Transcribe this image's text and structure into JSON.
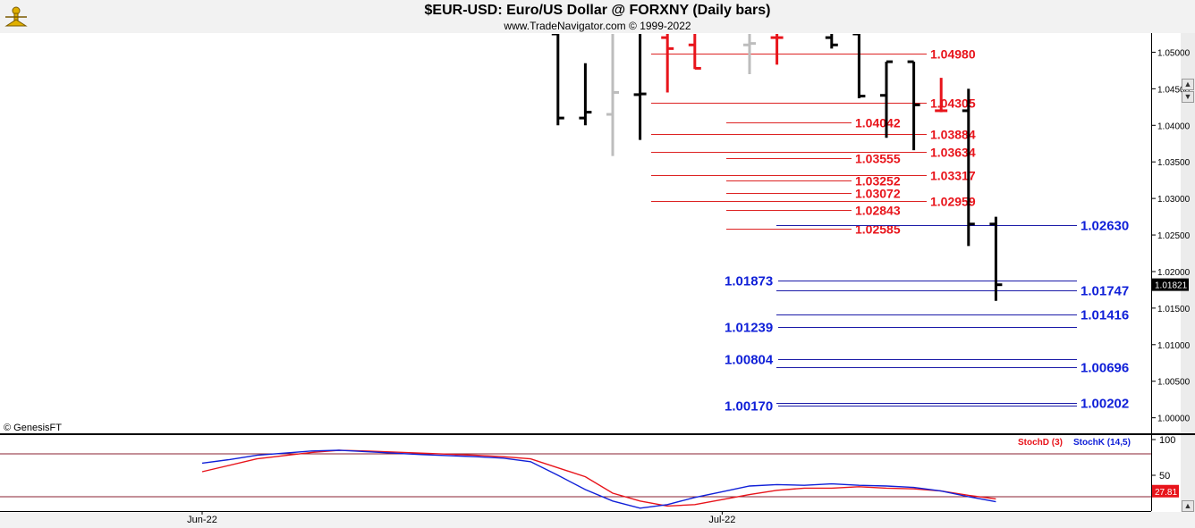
{
  "header": {
    "title": "$EUR-USD:  Euro/US Dollar @ FORXNY  (Daily bars)",
    "subtitle": "www.TradeNavigator.com © 1999-2022",
    "copyright": "© GenesisFT"
  },
  "colors": {
    "red": "#e8141b",
    "blue": "#1020d8",
    "black": "#000000",
    "gray": "#bdbdbd",
    "redline": "#dd2222",
    "blueline": "#1a1aa8"
  },
  "chart_data": [
    {
      "type": "ohlc",
      "title": "$EUR-USD:  Euro/US Dollar @ FORXNY  (Daily bars)",
      "ylim": [
        0.998,
        1.0525
      ],
      "y_ticks": [
        "1.05000",
        "1.04500",
        "1.04000",
        "1.03500",
        "1.03000",
        "1.02500",
        "1.02000",
        "1.01500",
        "1.01000",
        "1.00500",
        "1.00000"
      ],
      "last_price": "1.01821",
      "x_labels": [
        {
          "label": "Jun-22",
          "index": 0
        },
        {
          "label": "Jul-22",
          "index": 19
        }
      ],
      "bars": [
        {
          "i": 13,
          "o": 1.0525,
          "h": 1.0525,
          "l": 1.04,
          "c": 1.041,
          "col": "black"
        },
        {
          "i": 14,
          "o": 1.041,
          "h": 1.0485,
          "l": 1.04,
          "c": 1.0418,
          "col": "black"
        },
        {
          "i": 15,
          "o": 1.0415,
          "h": 1.0525,
          "l": 1.0358,
          "c": 1.0445,
          "col": "gray"
        },
        {
          "i": 16,
          "o": 1.0442,
          "h": 1.0525,
          "l": 1.038,
          "c": 1.0443,
          "col": "black"
        },
        {
          "i": 17,
          "o": 1.052,
          "h": 1.0525,
          "l": 1.0445,
          "c": 1.0505,
          "col": "red"
        },
        {
          "i": 18,
          "o": 1.051,
          "h": 1.0525,
          "l": 1.0477,
          "c": 1.0478,
          "col": "red"
        },
        {
          "i": 20,
          "o": 1.051,
          "h": 1.0525,
          "l": 1.047,
          "c": 1.0512,
          "col": "gray"
        },
        {
          "i": 21,
          "o": 1.052,
          "h": 1.0525,
          "l": 1.0483,
          "c": 1.052,
          "col": "red"
        },
        {
          "i": 23,
          "o": 1.052,
          "h": 1.0525,
          "l": 1.0505,
          "c": 1.051,
          "col": "black"
        },
        {
          "i": 24,
          "o": 1.0525,
          "h": 1.0525,
          "l": 1.0437,
          "c": 1.044,
          "col": "black"
        },
        {
          "i": 25,
          "o": 1.0441,
          "h": 1.0487,
          "l": 1.0383,
          "c": 1.0487,
          "col": "black"
        },
        {
          "i": 26,
          "o": 1.0487,
          "h": 1.0487,
          "l": 1.0366,
          "c": 1.0428,
          "col": "black"
        },
        {
          "i": 27,
          "o": 1.042,
          "h": 1.0465,
          "l": 1.0418,
          "c": 1.042,
          "col": "red"
        },
        {
          "i": 28,
          "o": 1.042,
          "h": 1.045,
          "l": 1.0235,
          "c": 1.0265,
          "col": "black"
        },
        {
          "i": 29,
          "o": 1.0265,
          "h": 1.0275,
          "l": 1.016,
          "c": 1.0182,
          "col": "black"
        }
      ],
      "resistance_levels": [
        {
          "value": "1.04980",
          "x0": 728,
          "x1": 1036,
          "label_x": 1040
        },
        {
          "value": "1.04305",
          "x0": 728,
          "x1": 1036,
          "label_x": 1040
        },
        {
          "value": "1.04042",
          "x0": 812,
          "x1": 952,
          "label_x": 956
        },
        {
          "value": "1.03884",
          "x0": 728,
          "x1": 1036,
          "label_x": 1040
        },
        {
          "value": "1.03634",
          "x0": 728,
          "x1": 1036,
          "label_x": 1040
        },
        {
          "value": "1.03555",
          "x0": 812,
          "x1": 952,
          "label_x": 956
        },
        {
          "value": "1.03317",
          "x0": 728,
          "x1": 1036,
          "label_x": 1040
        },
        {
          "value": "1.03252",
          "x0": 812,
          "x1": 952,
          "label_x": 956
        },
        {
          "value": "1.03072",
          "x0": 812,
          "x1": 952,
          "label_x": 956
        },
        {
          "value": "1.02959",
          "x0": 728,
          "x1": 1036,
          "label_x": 1040
        },
        {
          "value": "1.02843",
          "x0": 812,
          "x1": 952,
          "label_x": 956
        },
        {
          "value": "1.02585",
          "x0": 812,
          "x1": 952,
          "label_x": 956
        }
      ],
      "support_levels": [
        {
          "value": "1.02630",
          "x0": 868,
          "x1": 1204,
          "label_x": 1208,
          "side": "right"
        },
        {
          "value": "1.01873",
          "x0": 870,
          "x1": 1204,
          "label_x": 810,
          "side": "left"
        },
        {
          "value": "1.01747",
          "x0": 868,
          "x1": 1204,
          "label_x": 1208,
          "side": "right"
        },
        {
          "value": "1.01416",
          "x0": 868,
          "x1": 1204,
          "label_x": 1208,
          "side": "right"
        },
        {
          "value": "1.01239",
          "x0": 870,
          "x1": 1204,
          "label_x": 810,
          "side": "left"
        },
        {
          "value": "1.00804",
          "x0": 870,
          "x1": 1204,
          "label_x": 810,
          "side": "left"
        },
        {
          "value": "1.00696",
          "x0": 868,
          "x1": 1204,
          "label_x": 1208,
          "side": "right"
        },
        {
          "value": "1.00202",
          "x0": 868,
          "x1": 1204,
          "label_x": 1208,
          "side": "right"
        },
        {
          "value": "1.00170",
          "x0": 870,
          "x1": 1204,
          "label_x": 810,
          "side": "left"
        }
      ]
    },
    {
      "type": "line",
      "legend": [
        "StochD (3)",
        "StochK (14,5)"
      ],
      "ylim": [
        0,
        100
      ],
      "y_ticks": [
        "100",
        "50"
      ],
      "last_value": "27.81",
      "ref_lines": [
        80,
        20
      ],
      "series": [
        {
          "name": "StochD (3)",
          "color": "red",
          "x": [
            0,
            2,
            4,
            5,
            6,
            8,
            10,
            11,
            12,
            14,
            15,
            16,
            17,
            18,
            19,
            20,
            21,
            22,
            23,
            24,
            25,
            26,
            27,
            28,
            29
          ],
          "values": [
            55,
            73,
            82,
            85,
            84,
            81,
            78,
            76,
            73,
            48,
            25,
            14,
            7,
            9,
            16,
            23,
            29,
            32,
            32,
            34,
            32,
            31,
            28,
            22,
            17
          ]
        },
        {
          "name": "StochK (14,5)",
          "color": "blue",
          "x": [
            0,
            1,
            2,
            4,
            5,
            6,
            8,
            10,
            11,
            12,
            13,
            14,
            15,
            16,
            17,
            18,
            19,
            20,
            21,
            22,
            23,
            24,
            25,
            26,
            27,
            28,
            29
          ],
          "values": [
            67,
            72,
            78,
            84,
            85,
            83,
            79,
            76,
            74,
            69,
            50,
            30,
            14,
            4,
            9,
            19,
            27,
            35,
            37,
            36,
            38,
            36,
            35,
            33,
            28,
            20,
            13
          ]
        }
      ]
    }
  ]
}
